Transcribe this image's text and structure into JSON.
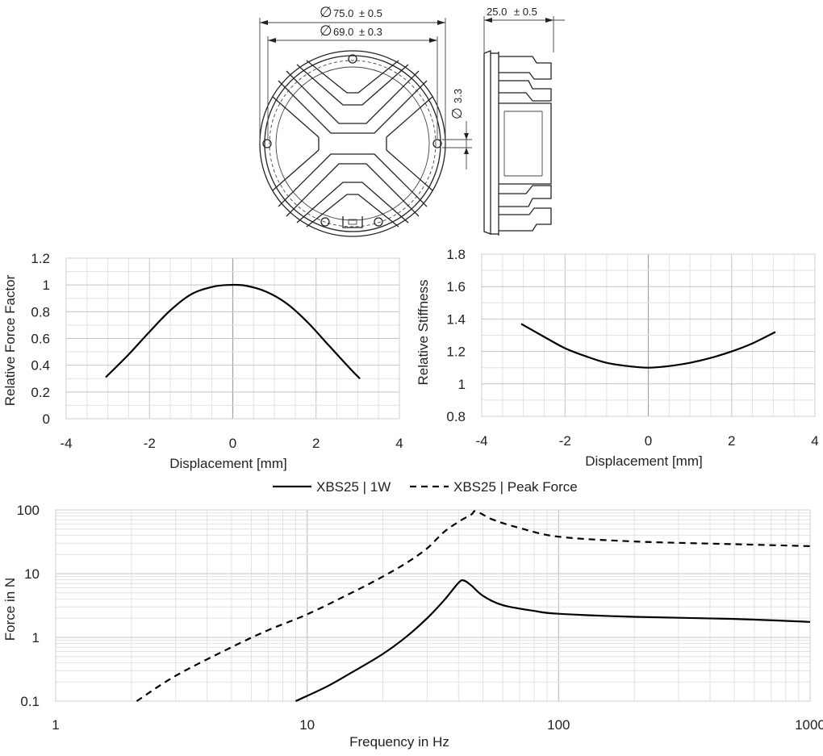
{
  "drawing": {
    "outer_diameter": "75.0",
    "outer_tol": "± 0.5",
    "inner_diameter": "69.0",
    "inner_tol": "± 0.3",
    "hole_diameter": "3.3",
    "depth": "25.0",
    "depth_tol": "± 0.5",
    "diameter_symbol": "∅"
  },
  "chart_data": [
    {
      "id": "force-factor",
      "type": "line",
      "xlabel": "Displacement  [mm]",
      "ylabel": "Relative Force Factor",
      "xlim": [
        -4,
        4
      ],
      "ylim": [
        0,
        1.2
      ],
      "xticks": [
        "-4",
        "-2",
        "0",
        "2",
        "4"
      ],
      "yticks": [
        "0",
        "0.2",
        "0.4",
        "0.6",
        "0.8",
        "1",
        "1.2"
      ],
      "grid": true,
      "series": [
        {
          "x": [
            -3.05,
            -2.5,
            -2.0,
            -1.5,
            -1.0,
            -0.5,
            -0.1,
            0.3,
            0.8,
            1.3,
            1.8,
            2.3,
            2.8,
            3.05
          ],
          "y": [
            0.31,
            0.48,
            0.65,
            0.81,
            0.93,
            0.985,
            1.0,
            0.995,
            0.95,
            0.86,
            0.72,
            0.55,
            0.38,
            0.3
          ]
        }
      ]
    },
    {
      "id": "stiffness",
      "type": "line",
      "xlabel": "Displacement  [mm]",
      "ylabel": "Relative Stiffness",
      "xlim": [
        -4,
        4
      ],
      "ylim": [
        0.8,
        1.8
      ],
      "xticks": [
        "-4",
        "-2",
        "0",
        "2",
        "4"
      ],
      "yticks": [
        "0.8",
        "1",
        "1.2",
        "1.4",
        "1.6",
        "1.8"
      ],
      "grid": true,
      "series": [
        {
          "x": [
            -3.05,
            -2.5,
            -2.0,
            -1.5,
            -1.0,
            -0.5,
            0.0,
            0.5,
            1.0,
            1.5,
            2.0,
            2.5,
            3.05
          ],
          "y": [
            1.37,
            1.29,
            1.22,
            1.17,
            1.13,
            1.11,
            1.1,
            1.11,
            1.13,
            1.16,
            1.2,
            1.25,
            1.32
          ]
        }
      ]
    },
    {
      "id": "force-frequency",
      "type": "line",
      "xlabel": "Frequency in Hz",
      "ylabel": "Force in N",
      "xscale": "log",
      "yscale": "log",
      "xlim": [
        1,
        1000
      ],
      "ylim": [
        0.1,
        100
      ],
      "xticks": [
        "1",
        "10",
        "100",
        "1000"
      ],
      "yticks": [
        "0.1",
        "1",
        "10",
        "100"
      ],
      "grid": true,
      "legend": "top-center",
      "series": [
        {
          "name": "XBS25 | 1W",
          "style": "solid",
          "x": [
            9,
            12,
            15,
            20,
            25,
            30,
            35,
            40,
            42,
            45,
            50,
            60,
            80,
            100,
            200,
            500,
            1000
          ],
          "y": [
            0.1,
            0.17,
            0.28,
            0.55,
            1.05,
            2.0,
            3.8,
            7.2,
            7.8,
            6.5,
            4.5,
            3.2,
            2.6,
            2.35,
            2.1,
            1.95,
            1.75
          ]
        },
        {
          "name": "XBS25 | Peak Force",
          "style": "dashed",
          "x": [
            2.1,
            3,
            5,
            7,
            10,
            15,
            20,
            25,
            30,
            35,
            40,
            45,
            47,
            55,
            70,
            100,
            200,
            500,
            1000
          ],
          "y": [
            0.1,
            0.25,
            0.7,
            1.3,
            2.3,
            5.0,
            9.0,
            15.0,
            25.0,
            45.0,
            65.0,
            85.0,
            95.0,
            70.0,
            52.0,
            38.0,
            32.0,
            29.0,
            27.0
          ]
        }
      ]
    }
  ]
}
